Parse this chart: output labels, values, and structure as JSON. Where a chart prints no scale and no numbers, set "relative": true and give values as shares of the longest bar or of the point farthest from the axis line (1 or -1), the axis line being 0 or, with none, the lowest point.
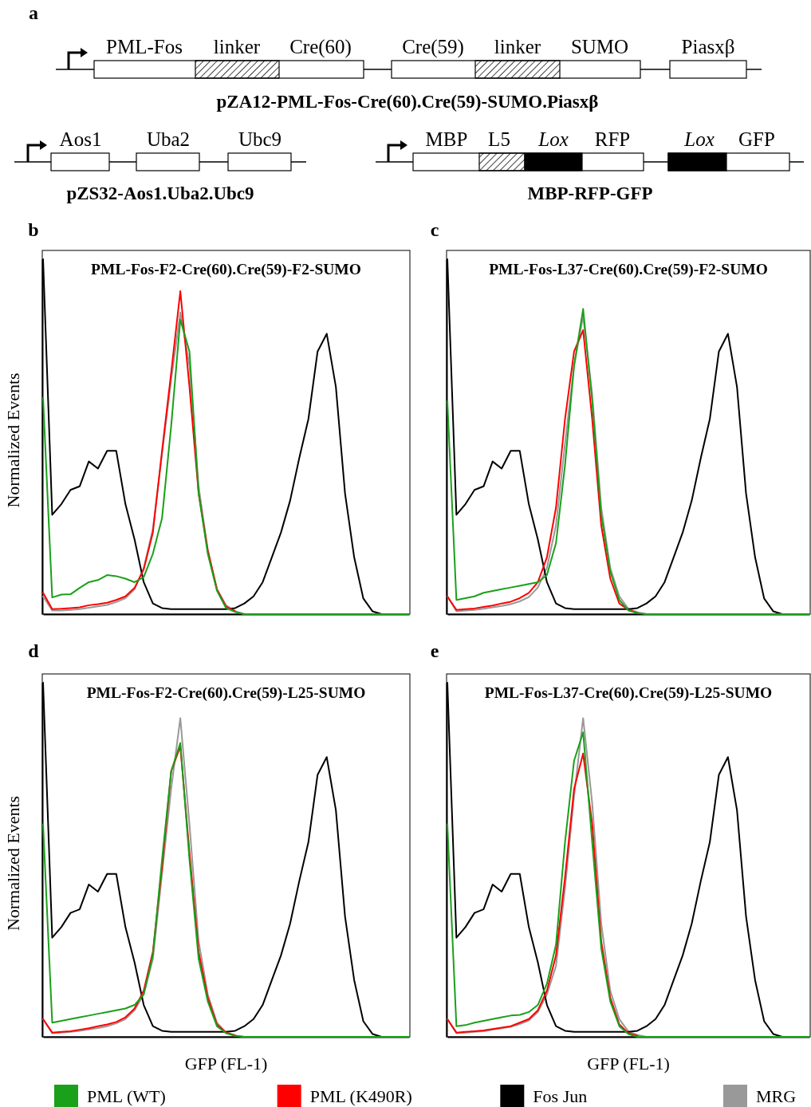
{
  "chart_data": [
    {
      "type": "other",
      "annotations": [
        "a",
        "PML-Fos",
        "linker",
        "Cre(60)",
        "Cre(59)",
        "linker",
        "SUMO",
        "Piasxβ",
        "pZA12-PML-Fos-Cre(60).Cre(59)-SUMO.Piasxβ",
        "Aos1",
        "Uba2",
        "Ubc9",
        "pZS32-Aos1.Uba2.Ubc9",
        "MBP",
        "L5",
        "Lox",
        "RFP",
        "Lox",
        "GFP",
        "MBP-RFP-GFP"
      ]
    },
    {
      "type": "line",
      "relative": true,
      "title": "PML-Fos-F2-Cre(60).Cre(59)-F2-SUMO",
      "ylabel": "Normalized Events",
      "annotations": [
        "b"
      ],
      "categories": [
        null,
        null,
        null,
        null,
        null,
        null,
        null,
        null,
        null,
        null,
        null,
        null,
        null,
        null,
        null,
        null,
        null,
        null,
        null,
        null,
        null,
        null,
        null,
        null,
        null,
        null,
        null,
        null,
        null,
        null,
        null,
        null,
        null,
        null,
        null,
        null,
        null,
        null,
        null,
        null,
        null
      ],
      "series": [
        {
          "color": "#1aa01a",
          "values": [
            0.61,
            0.047,
            0.055,
            0.056,
            0.074,
            0.09,
            0.096,
            0.11,
            0.107,
            0.1,
            0.09,
            0.104,
            0.17,
            0.27,
            0.53,
            0.83,
            0.74,
            0.34,
            0.17,
            0.066,
            0.017,
            0.006,
            0,
            0,
            0,
            0,
            0,
            0,
            0,
            0,
            0,
            0,
            0,
            0,
            0,
            0,
            0,
            0,
            0,
            0,
            0
          ]
        },
        {
          "color": "#ff0000",
          "values": [
            0.06,
            0.014,
            0.015,
            0.017,
            0.019,
            0.025,
            0.028,
            0.032,
            0.04,
            0.05,
            0.074,
            0.126,
            0.23,
            0.46,
            0.68,
            0.91,
            0.64,
            0.34,
            0.18,
            0.07,
            0.021,
            0.008,
            null,
            null,
            null,
            null,
            null,
            null,
            null,
            null,
            null,
            null,
            null,
            null,
            null,
            null,
            null,
            null,
            null,
            null,
            null
          ]
        },
        {
          "color": "#000000",
          "values": [
            1,
            0.28,
            0.31,
            0.35,
            0.36,
            0.43,
            0.41,
            0.46,
            0.46,
            0.31,
            0.21,
            0.09,
            0.03,
            0.017,
            0.014,
            0.014,
            0.014,
            0.014,
            0.014,
            0.014,
            0.014,
            0.017,
            0.03,
            0.05,
            0.09,
            0.16,
            0.23,
            0.32,
            0.44,
            0.55,
            0.74,
            0.79,
            0.64,
            0.34,
            0.16,
            0.044,
            0.008,
            0,
            0,
            0,
            0
          ]
        },
        {
          "color": "#999999",
          "values": [
            0.05,
            0.01,
            0.01,
            0.012,
            0.014,
            0.018,
            0.022,
            0.026,
            0.034,
            0.045,
            0.07,
            0.13,
            0.24,
            0.45,
            0.66,
            0.85,
            0.7,
            0.36,
            0.18,
            0.07,
            0.025,
            0.008,
            0,
            0,
            0,
            0,
            0,
            0,
            0,
            0,
            0,
            0,
            0,
            0,
            0,
            0,
            0,
            0,
            0,
            0,
            0
          ]
        }
      ]
    },
    {
      "type": "line",
      "relative": true,
      "title": "PML-Fos-L37-Cre(60).Cre(59)-F2-SUMO",
      "annotations": [
        "c"
      ],
      "categories": [
        null,
        null,
        null,
        null,
        null,
        null,
        null,
        null,
        null,
        null,
        null,
        null,
        null,
        null,
        null,
        null,
        null,
        null,
        null,
        null,
        null,
        null,
        null,
        null,
        null,
        null,
        null,
        null,
        null,
        null,
        null,
        null,
        null,
        null,
        null,
        null,
        null,
        null,
        null,
        null,
        null
      ],
      "series": [
        {
          "color": "#1aa01a",
          "values": [
            0.6,
            0.04,
            0.045,
            0.05,
            0.06,
            0.065,
            0.07,
            0.075,
            0.08,
            0.085,
            0.09,
            0.11,
            0.2,
            0.42,
            0.7,
            0.86,
            0.6,
            0.28,
            0.12,
            0.04,
            0.01,
            0.003,
            0,
            0,
            0,
            0,
            0,
            0,
            0,
            0,
            0,
            0,
            0,
            0,
            0,
            0,
            0,
            0,
            0,
            0,
            0
          ]
        },
        {
          "color": "#ff0000",
          "values": [
            0.05,
            0.012,
            0.014,
            0.016,
            0.02,
            0.024,
            0.03,
            0.035,
            0.045,
            0.06,
            0.09,
            0.16,
            0.3,
            0.55,
            0.74,
            0.8,
            0.55,
            0.25,
            0.1,
            0.03,
            0.012,
            0.004,
            null,
            null,
            null,
            null,
            null,
            null,
            null,
            null,
            null,
            null,
            null,
            null,
            null,
            null,
            null,
            null,
            null,
            null,
            null
          ]
        },
        {
          "color": "#000000",
          "values": [
            1,
            0.28,
            0.31,
            0.35,
            0.36,
            0.43,
            0.41,
            0.46,
            0.46,
            0.31,
            0.21,
            0.09,
            0.03,
            0.017,
            0.014,
            0.014,
            0.014,
            0.014,
            0.014,
            0.014,
            0.014,
            0.017,
            0.03,
            0.05,
            0.09,
            0.16,
            0.23,
            0.32,
            0.44,
            0.55,
            0.74,
            0.79,
            0.64,
            0.34,
            0.16,
            0.044,
            0.008,
            0,
            0,
            0,
            0
          ]
        },
        {
          "color": "#999999",
          "values": [
            0.05,
            0.008,
            0.01,
            0.012,
            0.015,
            0.019,
            0.023,
            0.028,
            0.036,
            0.048,
            0.075,
            0.13,
            0.25,
            0.48,
            0.7,
            0.84,
            0.62,
            0.3,
            0.13,
            0.05,
            0.015,
            0.005,
            0,
            0,
            0,
            0,
            0,
            0,
            0,
            0,
            0,
            0,
            0,
            0,
            0,
            0,
            0,
            0,
            0,
            0,
            0
          ]
        }
      ]
    },
    {
      "type": "line",
      "relative": true,
      "title": "PML-Fos-F2-Cre(60).Cre(59)-L25-SUMO",
      "ylabel": "Normalized Events",
      "xlabel": "GFP (FL-1)",
      "annotations": [
        "d"
      ],
      "categories": [
        null,
        null,
        null,
        null,
        null,
        null,
        null,
        null,
        null,
        null,
        null,
        null,
        null,
        null,
        null,
        null,
        null,
        null,
        null,
        null,
        null,
        null,
        null,
        null,
        null,
        null,
        null,
        null,
        null,
        null,
        null,
        null,
        null,
        null,
        null,
        null,
        null,
        null,
        null,
        null,
        null
      ],
      "series": [
        {
          "color": "#1aa01a",
          "values": [
            0.6,
            0.04,
            0.045,
            0.05,
            0.055,
            0.06,
            0.065,
            0.07,
            0.075,
            0.08,
            0.09,
            0.12,
            0.23,
            0.5,
            0.75,
            0.83,
            0.5,
            0.22,
            0.1,
            0.03,
            0.01,
            0.003,
            0,
            0,
            0,
            0,
            0,
            0,
            0,
            0,
            0,
            0,
            0,
            0,
            0,
            0,
            0,
            0,
            0,
            0,
            0
          ]
        },
        {
          "color": "#ff0000",
          "values": [
            0.05,
            0.012,
            0.014,
            0.016,
            0.02,
            0.024,
            0.03,
            0.035,
            0.042,
            0.055,
            0.08,
            0.13,
            0.24,
            0.48,
            0.75,
            0.82,
            0.52,
            0.24,
            0.11,
            0.035,
            0.012,
            0.004,
            null,
            null,
            null,
            null,
            null,
            null,
            null,
            null,
            null,
            null,
            null,
            null,
            null,
            null,
            null,
            null,
            null,
            null,
            null
          ]
        },
        {
          "color": "#000000",
          "values": [
            1,
            0.28,
            0.31,
            0.35,
            0.36,
            0.43,
            0.41,
            0.46,
            0.46,
            0.31,
            0.21,
            0.09,
            0.03,
            0.017,
            0.014,
            0.014,
            0.014,
            0.014,
            0.014,
            0.014,
            0.014,
            0.017,
            0.03,
            0.05,
            0.09,
            0.16,
            0.23,
            0.32,
            0.44,
            0.55,
            0.74,
            0.79,
            0.64,
            0.34,
            0.16,
            0.044,
            0.008,
            0,
            0,
            0,
            0
          ]
        },
        {
          "color": "#999999",
          "values": [
            0.05,
            0.01,
            0.012,
            0.014,
            0.017,
            0.021,
            0.025,
            0.03,
            0.038,
            0.05,
            0.075,
            0.12,
            0.22,
            0.46,
            0.7,
            0.9,
            0.6,
            0.27,
            0.12,
            0.04,
            0.012,
            0.004,
            0,
            0,
            0,
            0,
            0,
            0,
            0,
            0,
            0,
            0,
            0,
            0,
            0,
            0,
            0,
            0,
            0,
            0,
            0
          ]
        }
      ]
    },
    {
      "type": "line",
      "relative": true,
      "title": "PML-Fos-L37-Cre(60).Cre(59)-L25-SUMO",
      "xlabel": "GFP (FL-1)",
      "legend": "bottom",
      "annotations": [
        "e"
      ],
      "categories": [
        null,
        null,
        null,
        null,
        null,
        null,
        null,
        null,
        null,
        null,
        null,
        null,
        null,
        null,
        null,
        null,
        null,
        null,
        null,
        null,
        null,
        null,
        null,
        null,
        null,
        null,
        null,
        null,
        null,
        null,
        null,
        null,
        null,
        null,
        null,
        null,
        null,
        null,
        null,
        null,
        null
      ],
      "series": [
        {
          "name": "PML (WT)",
          "color": "#1aa01a",
          "values": [
            0.6,
            0.03,
            0.033,
            0.04,
            0.045,
            0.05,
            0.055,
            0.06,
            0.062,
            0.07,
            0.09,
            0.15,
            0.26,
            0.55,
            0.78,
            0.86,
            0.55,
            0.25,
            0.1,
            0.03,
            0.008,
            0,
            0,
            0,
            0,
            0,
            0,
            0,
            0,
            0,
            0,
            0,
            0,
            0,
            0,
            0,
            0,
            0,
            0,
            0,
            0
          ]
        },
        {
          "name": "PML (K490R)",
          "color": "#ff0000",
          "values": [
            0.05,
            0.012,
            0.014,
            0.016,
            0.018,
            0.022,
            0.026,
            0.03,
            0.04,
            0.05,
            0.075,
            0.13,
            0.23,
            0.45,
            0.7,
            0.8,
            0.6,
            0.27,
            0.11,
            0.035,
            0.01,
            0.003,
            null,
            null,
            null,
            null,
            null,
            null,
            null,
            null,
            null,
            null,
            null,
            null,
            null,
            null,
            null,
            null,
            null,
            null,
            null
          ]
        },
        {
          "name": "Fos Jun",
          "color": "#000000",
          "values": [
            1,
            0.28,
            0.31,
            0.35,
            0.36,
            0.43,
            0.41,
            0.46,
            0.46,
            0.31,
            0.21,
            0.09,
            0.03,
            0.017,
            0.014,
            0.014,
            0.014,
            0.014,
            0.014,
            0.014,
            0.014,
            0.017,
            0.03,
            0.05,
            0.09,
            0.16,
            0.23,
            0.32,
            0.44,
            0.55,
            0.74,
            0.79,
            0.64,
            0.34,
            0.16,
            0.044,
            0.008,
            0,
            0,
            0,
            0
          ]
        },
        {
          "name": "MRG",
          "color": "#999999",
          "values": [
            0.05,
            0.01,
            0.012,
            0.014,
            0.016,
            0.02,
            0.024,
            0.028,
            0.036,
            0.046,
            0.07,
            0.12,
            0.2,
            0.42,
            0.68,
            0.9,
            0.66,
            0.32,
            0.13,
            0.05,
            0.015,
            0.005,
            0,
            0,
            0,
            0,
            0,
            0,
            0,
            0,
            0,
            0,
            0,
            0,
            0,
            0,
            0,
            0,
            0,
            0,
            0
          ]
        }
      ]
    }
  ]
}
